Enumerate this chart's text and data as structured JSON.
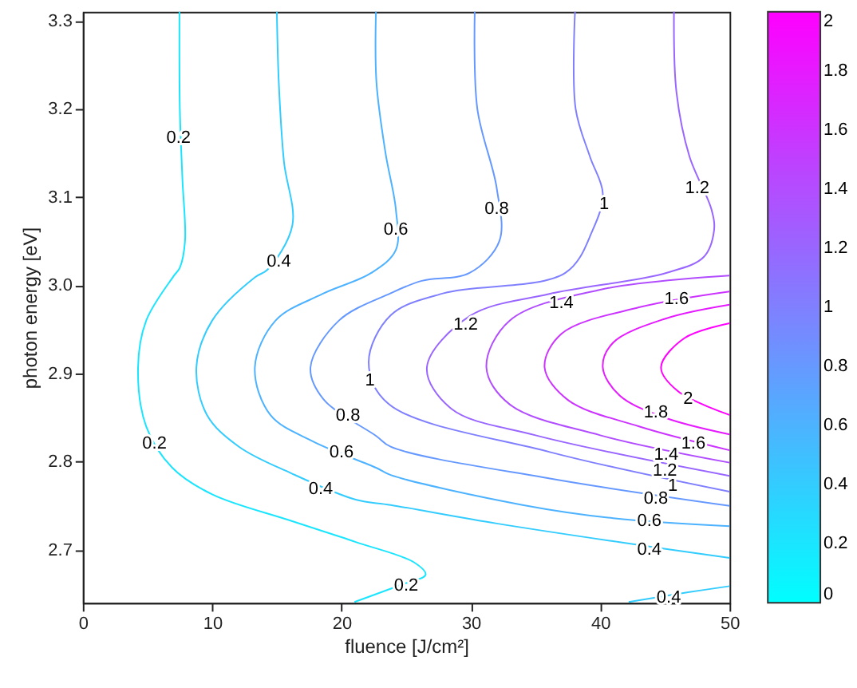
{
  "chart_data": {
    "type": "line",
    "xlabel": "fluence [J/cm²]",
    "ylabel": "photon energy [eV]",
    "xlim": [
      0,
      50
    ],
    "xticks": [
      0,
      10,
      20,
      30,
      40,
      50
    ],
    "ylim": [
      2.64,
      3.31
    ],
    "yticks": [
      2.7,
      2.8,
      2.9,
      {
        "value": 3,
        "label": "3.0"
      },
      3.1,
      3.2,
      3.3
    ],
    "clim": [
      0,
      2
    ],
    "cticks": [
      0,
      0.2,
      0.4,
      0.6,
      0.8,
      1,
      1.2,
      1.4,
      1.6,
      1.8,
      2
    ],
    "series": [
      {
        "color": "#1ae5ff",
        "x": [
          7.47,
          7.5,
          7.7,
          7.9,
          7.5,
          7.0,
          4.9,
          4.27,
          4.9,
          6.93,
          10.0,
          16.1,
          21.1,
          25.6,
          26.5,
          24.5,
          21.0
        ],
        "values": [
          3.31,
          3.2,
          3.12,
          3.05,
          3.02,
          3.01,
          2.96,
          2.907,
          2.84,
          2.793,
          2.763,
          2.733,
          2.709,
          2.686,
          2.672,
          2.66,
          2.641
        ]
      },
      {
        "color": "#33ccff",
        "x": [
          15.0,
          15.15,
          15.55,
          16.2,
          14.3,
          13.3,
          10.0,
          8.78,
          9.6,
          12.07,
          16.1,
          21.1,
          23.8,
          32.0,
          41.4,
          50
        ],
        "values": [
          3.31,
          3.23,
          3.14,
          3.068,
          3.018,
          3.009,
          2.96,
          2.907,
          2.853,
          2.817,
          2.787,
          2.757,
          2.751,
          2.73,
          2.709,
          2.691
        ]
      },
      {
        "color": "#33ccff",
        "x": [
          42.2,
          46.8,
          50
        ],
        "values": [
          2.641,
          2.652,
          2.659
        ]
      },
      {
        "color": "#4db2ff",
        "x": [
          22.66,
          22.7,
          23.4,
          24.2,
          24.2,
          22.3,
          18.5,
          14.9,
          13.3,
          14.5,
          17.8,
          22.7,
          23.8,
          34.0,
          41,
          50
        ],
        "values": [
          3.31,
          3.23,
          3.15,
          3.086,
          3.04,
          3.014,
          2.99,
          2.96,
          2.907,
          2.853,
          2.823,
          2.793,
          2.785,
          2.751,
          2.736,
          2.727
        ]
      },
      {
        "color": "#6699ff",
        "x": [
          30.3,
          30.5,
          32.0,
          32.2,
          29.9,
          26.2,
          23.8,
          19.8,
          17.6,
          18.6,
          22.7,
          23.8,
          36.1,
          50
        ],
        "values": [
          3.31,
          3.2,
          3.11,
          3.05,
          3.014,
          3.005,
          2.991,
          2.96,
          2.907,
          2.871,
          2.829,
          2.817,
          2.781,
          2.75
        ]
      },
      {
        "color": "#8080ff",
        "x": [
          38.05,
          38.1,
          39.2,
          40.2,
          39.4,
          37.3,
          27.9,
          23.8,
          22.1,
          23.6,
          36.1,
          50
        ],
        "values": [
          3.31,
          3.2,
          3.146,
          3.104,
          3.062,
          3.014,
          2.991,
          2.966,
          2.913,
          2.866,
          2.811,
          2.766
        ]
      },
      {
        "color": "#9966ff",
        "x": [
          45.7,
          45.9,
          46.9,
          48.6,
          48.8,
          48.0,
          45.1,
          36,
          29.9,
          26.6,
          28.5,
          35,
          50
        ],
        "values": [
          3.31,
          3.218,
          3.146,
          3.086,
          3.062,
          3.032,
          3.014,
          2.99,
          2.965,
          2.907,
          2.86,
          2.83,
          2.784
        ]
      },
      {
        "color": "#b24dff",
        "x": [
          50,
          40,
          33,
          31.2,
          33,
          40,
          50
        ],
        "values": [
          3.011,
          2.995,
          2.96,
          2.907,
          2.865,
          2.83,
          2.799
        ]
      },
      {
        "color": "#cc33ff",
        "x": [
          50,
          43,
          37,
          35.7,
          37.5,
          43,
          50
        ],
        "values": [
          2.993,
          2.975,
          2.945,
          2.907,
          2.87,
          2.84,
          2.813
        ]
      },
      {
        "color": "#e51aff",
        "x": [
          50,
          45,
          41,
          40.2,
          41.5,
          45,
          50
        ],
        "values": [
          2.978,
          2.962,
          2.935,
          2.907,
          2.875,
          2.85,
          2.831
        ]
      },
      {
        "color": "#ff00ff",
        "x": [
          50,
          46.5,
          44.7,
          46,
          50
        ],
        "values": [
          2.957,
          2.94,
          2.907,
          2.88,
          2.853
        ]
      }
    ],
    "annotations": [
      {
        "text": "0.2",
        "x": 7.4,
        "y": 3.167
      },
      {
        "text": "0.2",
        "x": 5.54,
        "y": 2.82
      },
      {
        "text": "0.2",
        "x": 25.0,
        "y": 2.659
      },
      {
        "text": "0.4",
        "x": 15.15,
        "y": 3.027
      },
      {
        "text": "0.4",
        "x": 18.4,
        "y": 2.769
      },
      {
        "text": "0.4",
        "x": 43.8,
        "y": 2.7
      },
      {
        "text": "0.4",
        "x": 45.3,
        "y": 2.646
      },
      {
        "text": "0.6",
        "x": 24.2,
        "y": 3.063
      },
      {
        "text": "0.6",
        "x": 20.0,
        "y": 2.81
      },
      {
        "text": "0.6",
        "x": 43.8,
        "y": 2.733
      },
      {
        "text": "0.8",
        "x": 32.0,
        "y": 3.086
      },
      {
        "text": "0.8",
        "x": 20.5,
        "y": 2.852
      },
      {
        "text": "0.8",
        "x": 44.3,
        "y": 2.758
      },
      {
        "text": "1",
        "x": 40.3,
        "y": 3.092
      },
      {
        "text": "1",
        "x": 22.2,
        "y": 2.892
      },
      {
        "text": "1",
        "x": 45.6,
        "y": 2.772
      },
      {
        "text": "1.2",
        "x": 47.5,
        "y": 3.11
      },
      {
        "text": "1.2",
        "x": 29.6,
        "y": 2.955
      },
      {
        "text": "1.2",
        "x": 45.0,
        "y": 2.79
      },
      {
        "text": "1.4",
        "x": 37.0,
        "y": 2.98
      },
      {
        "text": "1.4",
        "x": 45.1,
        "y": 2.808
      },
      {
        "text": "1.6",
        "x": 45.9,
        "y": 2.984
      },
      {
        "text": "1.6",
        "x": 47.2,
        "y": 2.82
      },
      {
        "text": "1.8",
        "x": 44.3,
        "y": 2.856
      },
      {
        "text": "2",
        "x": 46.8,
        "y": 2.871
      }
    ]
  }
}
